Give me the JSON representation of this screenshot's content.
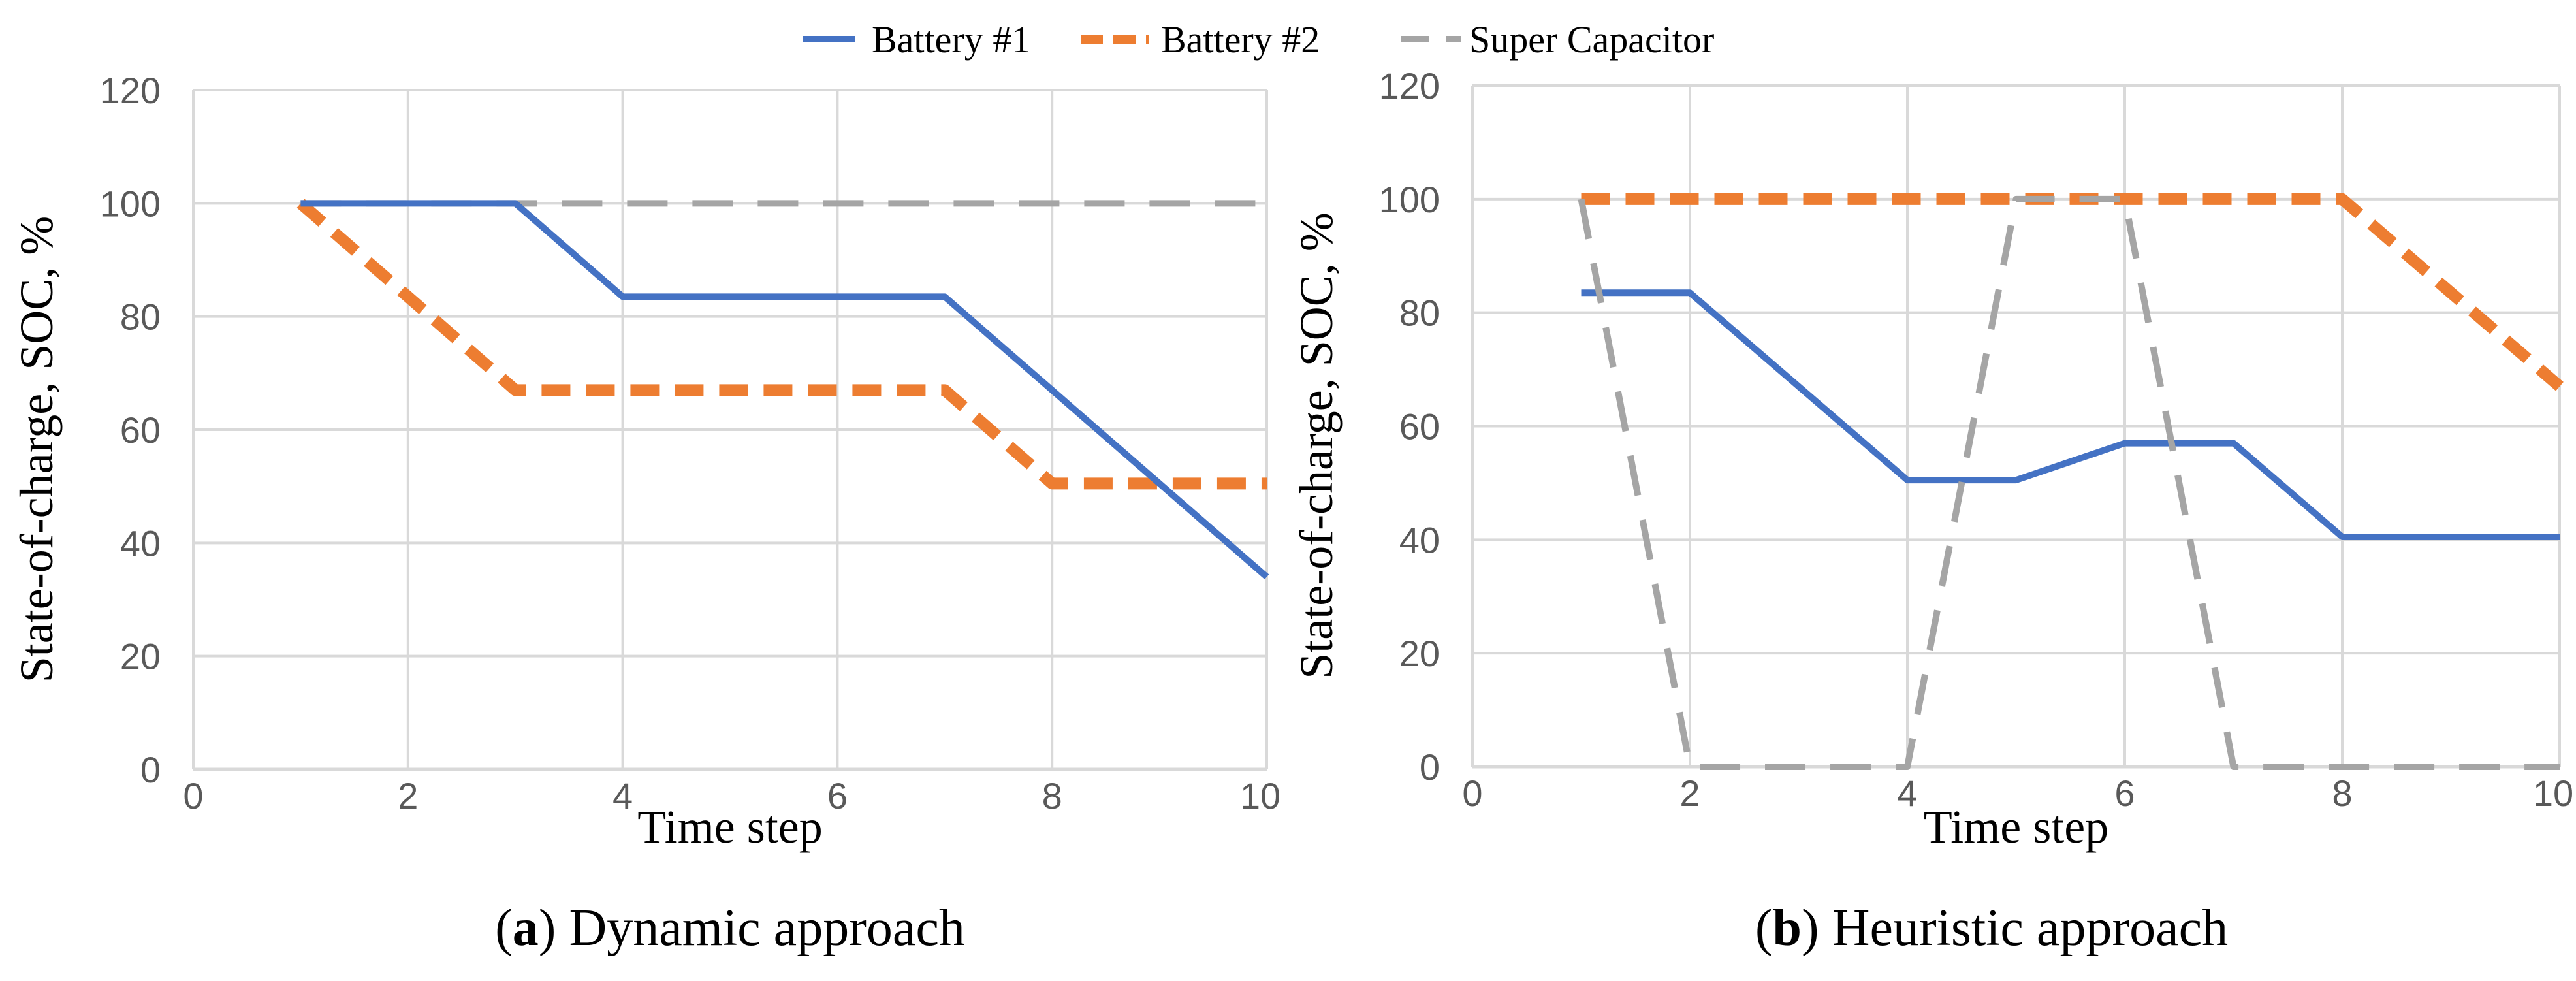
{
  "legend": [
    {
      "name": "Battery #1",
      "color": "#4472C4",
      "dash": "solid"
    },
    {
      "name": "Battery #2",
      "color": "#ED7D31",
      "dash": "dashed"
    },
    {
      "name": "Super Capacitor",
      "color": "#A5A5A5",
      "dash": "dashed"
    }
  ],
  "chart_data": [
    {
      "type": "line",
      "caption_letter": "a",
      "caption_text": ") Dynamic approach",
      "caption_open": "(",
      "xlabel": "Time step",
      "ylabel": "State-of-charge, SOC, %",
      "xlim": [
        0,
        10
      ],
      "ylim": [
        0,
        120
      ],
      "xticks": [
        0,
        2,
        4,
        6,
        8,
        10
      ],
      "yticks": [
        0,
        20,
        40,
        60,
        80,
        100,
        120
      ],
      "grid": true,
      "series": [
        {
          "name": "Battery #1",
          "x": [
            1,
            2,
            3,
            4,
            5,
            6,
            7,
            8,
            9,
            10
          ],
          "values": [
            100,
            100,
            100,
            83.5,
            83.5,
            83.5,
            83.5,
            67,
            50.5,
            34
          ]
        },
        {
          "name": "Battery #2",
          "x": [
            1,
            2,
            3,
            4,
            5,
            6,
            7,
            8,
            9,
            10
          ],
          "values": [
            100,
            83.5,
            67,
            67,
            67,
            67,
            67,
            50.5,
            50.5,
            50.5
          ]
        },
        {
          "name": "Super Capacitor",
          "x": [
            1,
            2,
            3,
            4,
            5,
            6,
            7,
            8,
            9,
            10
          ],
          "values": [
            100,
            100,
            100,
            100,
            100,
            100,
            100,
            100,
            100,
            100
          ]
        }
      ]
    },
    {
      "type": "line",
      "caption_letter": "b",
      "caption_text": ") Heuristic approach",
      "caption_open": "(",
      "xlabel": "Time step",
      "ylabel": "State-of-charge, SOC, %",
      "xlim": [
        0,
        10
      ],
      "ylim": [
        0,
        120
      ],
      "xticks": [
        0,
        2,
        4,
        6,
        8,
        10
      ],
      "yticks": [
        0,
        20,
        40,
        60,
        80,
        100,
        120
      ],
      "grid": true,
      "series": [
        {
          "name": "Battery #1",
          "x": [
            1,
            2,
            3,
            4,
            5,
            6,
            7,
            8,
            9,
            10
          ],
          "values": [
            83.5,
            83.5,
            67,
            50.5,
            50.5,
            57,
            57,
            40.5,
            40.5,
            40.5
          ]
        },
        {
          "name": "Battery #2",
          "x": [
            1,
            2,
            3,
            4,
            5,
            6,
            7,
            8,
            9,
            10
          ],
          "values": [
            100,
            100,
            100,
            100,
            100,
            100,
            100,
            100,
            83.5,
            67
          ]
        },
        {
          "name": "Super Capacitor",
          "x": [
            1,
            2,
            3,
            4,
            5,
            6,
            7,
            8,
            9,
            10
          ],
          "values": [
            100,
            0,
            0,
            0,
            100,
            100,
            0,
            0,
            0,
            0
          ]
        }
      ]
    }
  ]
}
